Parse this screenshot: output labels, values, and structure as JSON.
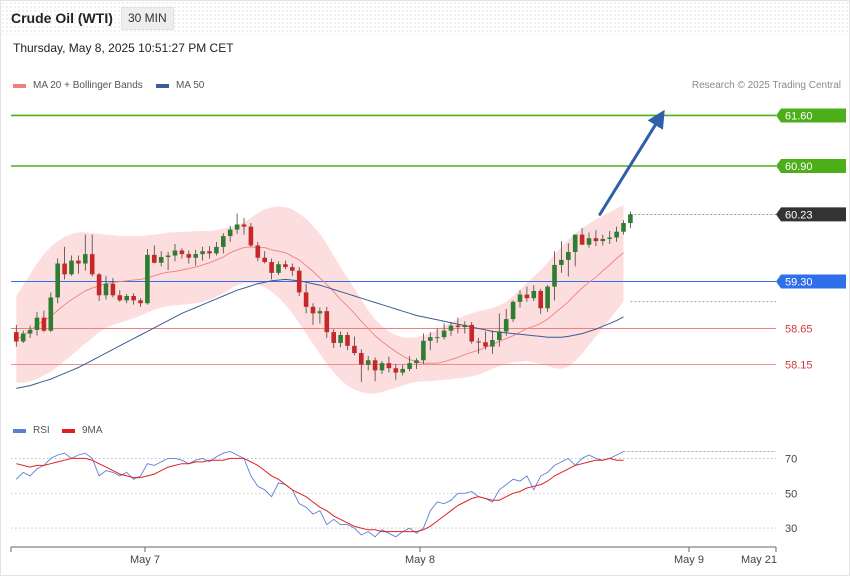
{
  "header": {
    "title": "Crude Oil (WTI)",
    "interval": "30 MIN",
    "timestamp": "Thursday, May 8, 2025 10:51:27 PM CET",
    "copyright": "Research © 2025 Trading Central"
  },
  "colors": {
    "candle_up": "#2e7d32",
    "candle_down": "#c62828",
    "bollinger_fill": "#fdd8d8",
    "ma20": "#f08080",
    "ma50": "#3d5a99",
    "resistance": "#4caf1a",
    "pivot": "#2f6fea",
    "support": "#f08080",
    "last_price": "#333333",
    "arrow": "#2e5fa8",
    "rsi": "#5b7fd6",
    "rsi_ma": "#e02020"
  },
  "chart_data": [
    {
      "type": "candlestick",
      "title": "Crude Oil (WTI)",
      "interval": "30 MIN",
      "legend": [
        {
          "name": "MA 20 + Bollinger Bands",
          "color": "#f08080"
        },
        {
          "name": "MA 50",
          "color": "#3d5a99"
        }
      ],
      "x_tick_labels": [
        "May 7",
        "May 8",
        "May 9",
        "May 21"
      ],
      "ylim": [
        57.48,
        61.8
      ],
      "levels": [
        {
          "value": 61.6,
          "label": "61.60",
          "kind": "resistance"
        },
        {
          "value": 60.9,
          "label": "60.90",
          "kind": "resistance"
        },
        {
          "value": 60.23,
          "label": "60.23",
          "kind": "last"
        },
        {
          "value": 59.3,
          "label": "59.30",
          "kind": "pivot"
        },
        {
          "value": 58.65,
          "label": "58.65",
          "kind": "support"
        },
        {
          "value": 58.15,
          "label": "58.15",
          "kind": "support"
        }
      ],
      "target_arrow": {
        "from_index": 84,
        "from": 60.23,
        "to_index": 93,
        "to": 61.6
      },
      "ohlc": [
        [
          58.6,
          58.7,
          58.4,
          58.47
        ],
        [
          58.47,
          58.62,
          58.45,
          58.58
        ],
        [
          58.58,
          58.69,
          58.52,
          58.63
        ],
        [
          58.63,
          58.88,
          58.55,
          58.8
        ],
        [
          58.8,
          58.9,
          58.6,
          58.62
        ],
        [
          58.62,
          59.15,
          58.6,
          59.08
        ],
        [
          59.08,
          59.62,
          59.0,
          59.55
        ],
        [
          59.55,
          59.78,
          59.33,
          59.4
        ],
        [
          59.4,
          59.66,
          59.38,
          59.59
        ],
        [
          59.59,
          59.66,
          59.41,
          59.55
        ],
        [
          59.55,
          59.95,
          59.45,
          59.68
        ],
        [
          59.68,
          59.95,
          59.37,
          59.4
        ],
        [
          59.4,
          59.42,
          59.03,
          59.11
        ],
        [
          59.11,
          59.38,
          59.05,
          59.27
        ],
        [
          59.27,
          59.35,
          59.08,
          59.11
        ],
        [
          59.11,
          59.18,
          59.02,
          59.04
        ],
        [
          59.04,
          59.13,
          59.0,
          59.1
        ],
        [
          59.1,
          59.14,
          58.98,
          59.04
        ],
        [
          59.04,
          59.07,
          58.95,
          59.0
        ],
        [
          59.0,
          59.75,
          58.98,
          59.67
        ],
        [
          59.67,
          59.8,
          59.55,
          59.56
        ],
        [
          59.56,
          59.72,
          59.51,
          59.64
        ],
        [
          59.64,
          59.71,
          59.46,
          59.66
        ],
        [
          59.66,
          59.82,
          59.58,
          59.73
        ],
        [
          59.73,
          59.76,
          59.62,
          59.68
        ],
        [
          59.68,
          59.73,
          59.55,
          59.63
        ],
        [
          59.63,
          59.74,
          59.52,
          59.68
        ],
        [
          59.68,
          59.78,
          59.59,
          59.72
        ],
        [
          59.72,
          59.79,
          59.62,
          59.69
        ],
        [
          59.69,
          59.85,
          59.66,
          59.78
        ],
        [
          59.78,
          59.97,
          59.69,
          59.93
        ],
        [
          59.93,
          60.07,
          59.85,
          60.02
        ],
        [
          60.02,
          60.24,
          59.96,
          60.09
        ],
        [
          60.09,
          60.18,
          59.95,
          60.06
        ],
        [
          60.06,
          60.11,
          59.78,
          59.8
        ],
        [
          59.8,
          59.85,
          59.58,
          59.63
        ],
        [
          59.63,
          59.72,
          59.55,
          59.57
        ],
        [
          59.57,
          59.62,
          59.33,
          59.42
        ],
        [
          59.42,
          59.58,
          59.39,
          59.54
        ],
        [
          59.54,
          59.59,
          59.47,
          59.5
        ],
        [
          59.5,
          59.55,
          59.38,
          59.45
        ],
        [
          59.45,
          59.5,
          59.1,
          59.15
        ],
        [
          59.15,
          59.27,
          58.86,
          58.95
        ],
        [
          58.95,
          59.0,
          58.7,
          58.86
        ],
        [
          58.86,
          58.94,
          58.72,
          58.89
        ],
        [
          58.89,
          58.95,
          58.52,
          58.6
        ],
        [
          58.6,
          58.64,
          58.38,
          58.45
        ],
        [
          58.45,
          58.61,
          58.39,
          58.56
        ],
        [
          58.56,
          58.6,
          58.35,
          58.41
        ],
        [
          58.41,
          58.54,
          58.28,
          58.31
        ],
        [
          58.31,
          58.36,
          57.91,
          58.15
        ],
        [
          58.15,
          58.27,
          58.07,
          58.21
        ],
        [
          58.21,
          58.25,
          57.92,
          58.07
        ],
        [
          58.07,
          58.2,
          58.02,
          58.17
        ],
        [
          58.17,
          58.26,
          58.04,
          58.1
        ],
        [
          58.1,
          58.16,
          57.94,
          58.04
        ],
        [
          58.04,
          58.15,
          58.0,
          58.09
        ],
        [
          58.09,
          58.27,
          58.06,
          58.17
        ],
        [
          58.17,
          58.24,
          58.09,
          58.21
        ],
        [
          58.21,
          58.58,
          58.16,
          58.48
        ],
        [
          58.48,
          58.6,
          58.35,
          58.53
        ],
        [
          58.53,
          58.65,
          58.45,
          58.53
        ],
        [
          58.53,
          58.72,
          58.5,
          58.62
        ],
        [
          58.62,
          58.74,
          58.55,
          58.69
        ],
        [
          58.69,
          58.8,
          58.58,
          58.67
        ],
        [
          58.67,
          58.75,
          58.58,
          58.7
        ],
        [
          58.7,
          58.74,
          58.44,
          58.47
        ],
        [
          58.47,
          58.52,
          58.3,
          58.46
        ],
        [
          58.46,
          58.61,
          58.36,
          58.4
        ],
        [
          58.4,
          58.62,
          58.3,
          58.49
        ],
        [
          58.49,
          58.86,
          58.4,
          58.61
        ],
        [
          58.61,
          58.92,
          58.55,
          58.78
        ],
        [
          58.78,
          59.04,
          58.74,
          59.02
        ],
        [
          59.02,
          59.18,
          58.94,
          59.12
        ],
        [
          59.12,
          59.23,
          59.02,
          59.07
        ],
        [
          59.07,
          59.25,
          59.03,
          59.17
        ],
        [
          59.17,
          59.2,
          58.85,
          58.93
        ],
        [
          58.93,
          59.25,
          58.88,
          59.23
        ],
        [
          59.23,
          59.72,
          59.04,
          59.53
        ],
        [
          59.53,
          59.86,
          59.42,
          59.6
        ],
        [
          59.6,
          59.83,
          59.37,
          59.71
        ],
        [
          59.71,
          59.92,
          59.51,
          59.95
        ],
        [
          59.95,
          60.04,
          59.82,
          59.81
        ],
        [
          59.81,
          59.98,
          59.77,
          59.9
        ],
        [
          59.9,
          60.01,
          59.79,
          59.86
        ],
        [
          59.86,
          59.95,
          59.8,
          59.89
        ],
        [
          59.89,
          60.0,
          59.82,
          59.91
        ],
        [
          59.91,
          60.06,
          59.85,
          59.99
        ],
        [
          59.99,
          60.15,
          59.95,
          60.11
        ],
        [
          60.11,
          60.27,
          60.04,
          60.23
        ]
      ],
      "ma20": [
        58.5,
        58.55,
        58.62,
        58.7,
        58.76,
        58.82,
        58.9,
        58.98,
        59.05,
        59.11,
        59.17,
        59.21,
        59.24,
        59.27,
        59.29,
        59.3,
        59.31,
        59.32,
        59.33,
        59.35,
        59.38,
        59.41,
        59.43,
        59.44,
        59.46,
        59.48,
        59.5,
        59.53,
        59.56,
        59.6,
        59.64,
        59.7,
        59.74,
        59.77,
        59.78,
        59.77,
        59.77,
        59.74,
        59.72,
        59.7,
        59.65,
        59.6,
        59.52,
        59.44,
        59.35,
        59.26,
        59.16,
        59.05,
        58.96,
        58.86,
        58.75,
        58.65,
        58.55,
        58.47,
        58.4,
        58.33,
        58.27,
        58.22,
        58.19,
        58.17,
        58.17,
        58.17,
        58.19,
        58.22,
        58.25,
        58.29,
        58.32,
        58.35,
        58.39,
        58.43,
        58.47,
        58.51,
        58.55,
        58.6,
        58.65,
        58.68,
        58.72,
        58.78,
        58.86,
        58.94,
        59.02,
        59.12,
        59.21,
        59.29,
        59.36,
        59.45,
        59.53,
        59.62,
        59.7
      ],
      "bb_upper": [
        59.1,
        59.25,
        59.4,
        59.55,
        59.68,
        59.78,
        59.86,
        59.92,
        59.96,
        59.98,
        59.98,
        59.97,
        59.96,
        59.95,
        59.94,
        59.93,
        59.93,
        59.93,
        59.93,
        59.94,
        59.95,
        59.96,
        59.98,
        59.98,
        59.99,
        59.99,
        60.0,
        60.0,
        60.0,
        60.01,
        60.03,
        60.05,
        60.08,
        60.12,
        60.18,
        60.25,
        60.3,
        60.33,
        60.34,
        60.33,
        60.3,
        60.24,
        60.17,
        60.07,
        59.96,
        59.82,
        59.66,
        59.5,
        59.35,
        59.2,
        59.05,
        58.9,
        58.78,
        58.68,
        58.61,
        58.56,
        58.53,
        58.52,
        58.53,
        58.55,
        58.59,
        58.63,
        58.68,
        58.73,
        58.78,
        58.83,
        58.86,
        58.89,
        58.91,
        58.93,
        58.97,
        59.02,
        59.1,
        59.19,
        59.28,
        59.37,
        59.46,
        59.56,
        59.67,
        59.78,
        59.88,
        59.97,
        60.04,
        60.1,
        60.16,
        60.21,
        60.26,
        60.31,
        60.36
      ],
      "bb_lower": [
        57.9,
        57.9,
        57.92,
        57.95,
        58.0,
        58.05,
        58.12,
        58.2,
        58.28,
        58.36,
        58.44,
        58.52,
        58.6,
        58.66,
        58.7,
        58.73,
        58.76,
        58.79,
        58.83,
        58.87,
        58.91,
        58.94,
        58.96,
        58.97,
        58.98,
        58.99,
        59.0,
        59.02,
        59.05,
        59.09,
        59.14,
        59.2,
        59.25,
        59.28,
        59.28,
        59.26,
        59.22,
        59.16,
        59.08,
        58.98,
        58.86,
        58.72,
        58.58,
        58.44,
        58.3,
        58.16,
        58.04,
        57.94,
        57.86,
        57.8,
        57.77,
        57.75,
        57.75,
        57.77,
        57.8,
        57.83,
        57.86,
        57.89,
        57.91,
        57.92,
        57.92,
        57.93,
        57.94,
        57.95,
        57.96,
        57.97,
        57.99,
        58.01,
        58.05,
        58.09,
        58.13,
        58.16,
        58.18,
        58.19,
        58.2,
        58.18,
        58.16,
        58.13,
        58.1,
        58.09,
        58.12,
        58.2,
        58.3,
        58.42,
        58.54,
        58.66,
        58.78,
        58.9,
        59.02
      ],
      "ma50": [
        57.82,
        57.84,
        57.86,
        57.89,
        57.92,
        57.95,
        57.99,
        58.03,
        58.07,
        58.11,
        58.16,
        58.21,
        58.26,
        58.31,
        58.36,
        58.41,
        58.46,
        58.51,
        58.56,
        58.61,
        58.66,
        58.71,
        58.76,
        58.81,
        58.86,
        58.9,
        58.94,
        58.98,
        59.02,
        59.06,
        59.1,
        59.14,
        59.18,
        59.21,
        59.24,
        59.27,
        59.29,
        59.31,
        59.32,
        59.33,
        59.32,
        59.31,
        59.29,
        59.27,
        59.25,
        59.22,
        59.19,
        59.16,
        59.13,
        59.1,
        59.07,
        59.04,
        59.01,
        58.98,
        58.95,
        58.92,
        58.89,
        58.86,
        58.83,
        58.81,
        58.79,
        58.77,
        58.75,
        58.73,
        58.71,
        58.69,
        58.67,
        58.65,
        58.63,
        58.61,
        58.6,
        58.59,
        58.58,
        58.57,
        58.56,
        58.55,
        58.54,
        58.53,
        58.53,
        58.53,
        58.54,
        58.56,
        58.58,
        58.61,
        58.64,
        58.68,
        58.72,
        58.76,
        58.81
      ]
    },
    {
      "type": "line",
      "legend": [
        {
          "name": "RSI",
          "color": "#5b7fd6"
        },
        {
          "name": "9MA",
          "color": "#e02020"
        }
      ],
      "ylim": [
        22,
        76
      ],
      "y_ticks": [
        30,
        50,
        70
      ],
      "series": [
        {
          "name": "RSI",
          "values": [
            58,
            62,
            60,
            64,
            66,
            70,
            72,
            73,
            70,
            72,
            73,
            70,
            60,
            63,
            62,
            60,
            62,
            58,
            60,
            67,
            66,
            68,
            70,
            70,
            69,
            67,
            69,
            70,
            68,
            71,
            73,
            74,
            72,
            70,
            60,
            54,
            52,
            48,
            56,
            55,
            52,
            44,
            42,
            38,
            40,
            32,
            35,
            32,
            32,
            30,
            26,
            28,
            25,
            29,
            27,
            25,
            28,
            30,
            27,
            30,
            40,
            45,
            44,
            46,
            50,
            50,
            51,
            48,
            47,
            45,
            52,
            55,
            58,
            57,
            60,
            52,
            60,
            62,
            66,
            68,
            70,
            66,
            70,
            72,
            70,
            69,
            70,
            72,
            74
          ]
        },
        {
          "name": "9MA",
          "values": [
            67,
            66,
            65,
            66,
            66,
            67,
            68,
            69,
            70,
            70,
            70,
            69,
            67,
            65,
            63,
            61,
            60,
            59,
            59,
            60,
            61,
            63,
            65,
            66,
            67,
            67,
            68,
            68,
            69,
            69,
            69,
            70,
            70,
            70,
            68,
            66,
            63,
            60,
            58,
            55,
            52,
            50,
            48,
            45,
            42,
            40,
            37,
            35,
            33,
            31,
            30,
            29,
            29,
            28,
            28,
            28,
            28,
            28,
            28,
            29,
            31,
            34,
            37,
            40,
            43,
            45,
            47,
            48,
            47,
            46,
            46,
            48,
            50,
            51,
            53,
            54,
            55,
            57,
            60,
            62,
            64,
            66,
            67,
            68,
            69,
            69,
            70,
            69,
            69
          ]
        }
      ]
    }
  ]
}
